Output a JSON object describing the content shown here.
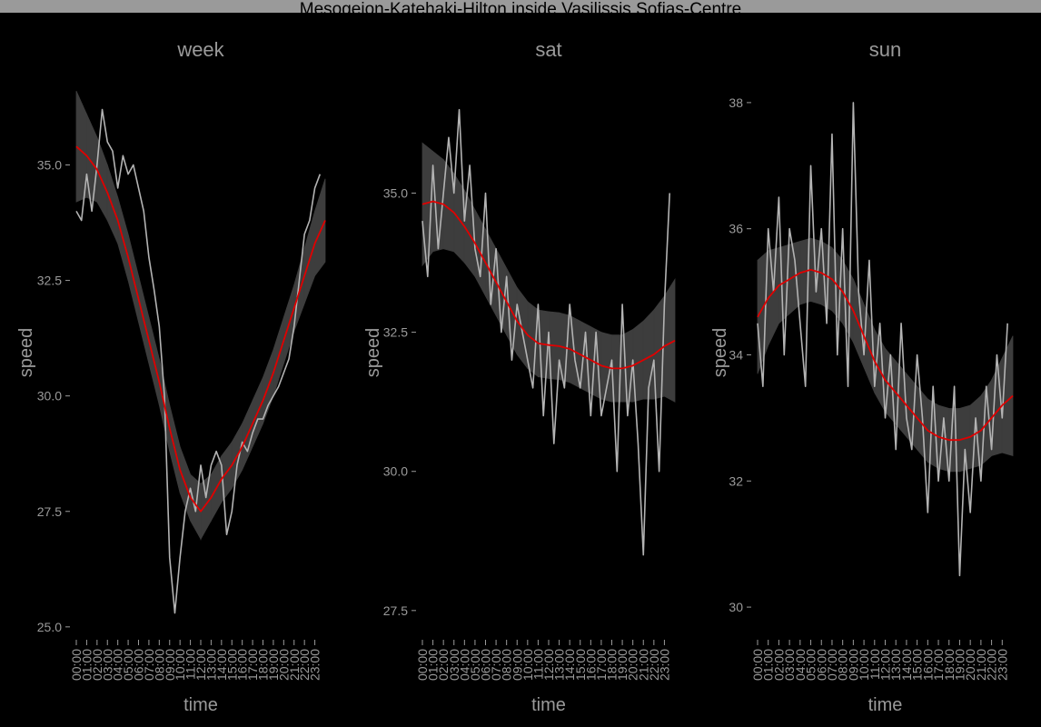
{
  "title": "Mesogeion-Katehaki-Hilton inside Vasilissis Sofias-Centre",
  "chart_data": [
    {
      "type": "line",
      "title": "week",
      "xlabel": "time",
      "ylabel": "speed",
      "xlim": [
        0,
        24
      ],
      "ylim": [
        24.8,
        36.8
      ],
      "yticks": [
        {
          "value": 25,
          "label": "25.0"
        },
        27.5,
        {
          "value": 30,
          "label": "30.0"
        },
        32.5,
        {
          "value": 35,
          "label": "35.0"
        }
      ],
      "xticks": [
        {
          "value": 0,
          "label": "00:00"
        },
        {
          "value": 1,
          "label": "01:00"
        },
        {
          "value": 2,
          "label": "02:00"
        },
        {
          "value": 3,
          "label": "03:00"
        },
        {
          "value": 4,
          "label": "04:00"
        },
        {
          "value": 5,
          "label": "05:00"
        },
        {
          "value": 6,
          "label": "06:00"
        },
        {
          "value": 7,
          "label": "07:00"
        },
        {
          "value": 8,
          "label": "08:00"
        },
        {
          "value": 9,
          "label": "09:00"
        },
        {
          "value": 10,
          "label": "10:00"
        },
        {
          "value": 11,
          "label": "11:00"
        },
        {
          "value": 12,
          "label": "12:00"
        },
        {
          "value": 13,
          "label": "13:00"
        },
        {
          "value": 14,
          "label": "14:00"
        },
        {
          "value": 15,
          "label": "15:00"
        },
        {
          "value": 16,
          "label": "16:00"
        },
        {
          "value": 17,
          "label": "17:00"
        },
        {
          "value": 18,
          "label": "18:00"
        },
        {
          "value": 19,
          "label": "19:00"
        },
        {
          "value": 20,
          "label": "20:00"
        },
        {
          "value": 21,
          "label": "21:00"
        },
        {
          "value": 22,
          "label": "22:00"
        },
        {
          "value": 23,
          "label": "23:00"
        }
      ],
      "x": [
        0,
        0.5,
        1,
        1.5,
        2,
        2.5,
        3,
        3.5,
        4,
        4.5,
        5,
        5.5,
        6,
        6.5,
        7,
        7.5,
        8,
        8.5,
        9,
        9.5,
        10,
        10.5,
        11,
        11.5,
        12,
        12.5,
        13,
        13.5,
        14,
        14.5,
        15,
        15.5,
        16,
        16.5,
        17,
        17.5,
        18,
        18.5,
        19,
        19.5,
        20,
        20.5,
        21,
        21.5,
        22,
        22.5,
        23,
        23.5
      ],
      "values": [
        34,
        33.8,
        34.8,
        34,
        35,
        36.2,
        35.5,
        35.3,
        34.5,
        35.2,
        34.8,
        35,
        34.5,
        34,
        33,
        32.3,
        31.5,
        30,
        26.5,
        25.3,
        26.5,
        27.5,
        28,
        27.5,
        28.5,
        27.8,
        28.5,
        28.8,
        28.5,
        27,
        27.5,
        28.5,
        29,
        28.8,
        29.2,
        29.5,
        29.5,
        29.8,
        30,
        30.2,
        30.5,
        30.8,
        31.5,
        32.5,
        33.5,
        33.8,
        34.5,
        34.8
      ],
      "color": "#b3b3b3",
      "smooth_x": [
        0,
        1,
        2,
        3,
        4,
        5,
        6,
        7,
        8,
        9,
        10,
        11,
        12,
        13,
        14,
        15,
        16,
        17,
        18,
        19,
        20,
        21,
        22,
        23,
        24
      ],
      "smooth": [
        35.4,
        35.2,
        34.9,
        34.4,
        33.8,
        33.0,
        32.1,
        31.2,
        30.3,
        29.3,
        28.4,
        27.8,
        27.5,
        27.8,
        28.2,
        28.5,
        28.9,
        29.4,
        29.9,
        30.5,
        31.2,
        31.9,
        32.6,
        33.3,
        33.8
      ],
      "smooth_color": "#e00000",
      "band": {
        "color": "#3d3d3d",
        "lower": [
          34.2,
          34.3,
          34.2,
          33.8,
          33.3,
          32.5,
          31.6,
          30.7,
          29.8,
          28.8,
          27.9,
          27.3,
          26.9,
          27.3,
          27.7,
          28.0,
          28.4,
          28.9,
          29.4,
          30.0,
          30.7,
          31.4,
          32.0,
          32.6,
          32.9
        ],
        "upper": [
          36.6,
          36.1,
          35.6,
          35.0,
          34.3,
          33.5,
          32.6,
          31.7,
          30.8,
          29.8,
          28.9,
          28.3,
          28.1,
          28.3,
          28.7,
          29.0,
          29.4,
          29.9,
          30.4,
          31.0,
          31.7,
          32.4,
          33.2,
          34.0,
          34.7
        ]
      }
    },
    {
      "type": "line",
      "title": "sat",
      "xlabel": "time",
      "ylabel": "speed",
      "xlim": [
        0,
        24
      ],
      "ylim": [
        27.04,
        37.0
      ],
      "yticks": [
        27.5,
        {
          "value": 30,
          "label": "30.0"
        },
        32.5,
        {
          "value": 35,
          "label": "35.0"
        }
      ],
      "xticks": [
        {
          "value": 0,
          "label": "00:00"
        },
        {
          "value": 1,
          "label": "01:00"
        },
        {
          "value": 2,
          "label": "02:00"
        },
        {
          "value": 3,
          "label": "03:00"
        },
        {
          "value": 4,
          "label": "04:00"
        },
        {
          "value": 5,
          "label": "05:00"
        },
        {
          "value": 6,
          "label": "06:00"
        },
        {
          "value": 7,
          "label": "07:00"
        },
        {
          "value": 8,
          "label": "08:00"
        },
        {
          "value": 9,
          "label": "09:00"
        },
        {
          "value": 10,
          "label": "10:00"
        },
        {
          "value": 11,
          "label": "11:00"
        },
        {
          "value": 12,
          "label": "12:00"
        },
        {
          "value": 13,
          "label": "13:00"
        },
        {
          "value": 14,
          "label": "14:00"
        },
        {
          "value": 15,
          "label": "15:00"
        },
        {
          "value": 16,
          "label": "16:00"
        },
        {
          "value": 17,
          "label": "17:00"
        },
        {
          "value": 18,
          "label": "18:00"
        },
        {
          "value": 19,
          "label": "19:00"
        },
        {
          "value": 20,
          "label": "20:00"
        },
        {
          "value": 21,
          "label": "21:00"
        },
        {
          "value": 22,
          "label": "22:00"
        },
        {
          "value": 23,
          "label": "23:00"
        }
      ],
      "x": [
        0,
        0.5,
        1,
        1.5,
        2,
        2.5,
        3,
        3.5,
        4,
        4.5,
        5,
        5.5,
        6,
        6.5,
        7,
        7.5,
        8,
        8.5,
        9,
        9.5,
        10,
        10.5,
        11,
        11.5,
        12,
        12.5,
        13,
        13.5,
        14,
        14.5,
        15,
        15.5,
        16,
        16.5,
        17,
        17.5,
        18,
        18.5,
        19,
        19.5,
        20,
        20.5,
        21,
        21.5,
        22,
        22.5,
        23,
        23.5
      ],
      "values": [
        34.5,
        33.5,
        35.5,
        34,
        35,
        36,
        35,
        36.5,
        34.5,
        35.5,
        34,
        33.5,
        35,
        33,
        34,
        32.5,
        33.5,
        32,
        33,
        32.5,
        32,
        31.5,
        33,
        31,
        32.5,
        30.5,
        32,
        31.5,
        33,
        32,
        31.5,
        32.5,
        31,
        32.5,
        31,
        31.5,
        32,
        30,
        33,
        31,
        32,
        30.5,
        28.5,
        31.5,
        32,
        30,
        33,
        35
      ],
      "color": "#b3b3b3",
      "smooth_x": [
        0,
        1,
        2,
        3,
        4,
        5,
        6,
        7,
        8,
        9,
        10,
        11,
        12,
        13,
        14,
        15,
        16,
        17,
        18,
        19,
        20,
        21,
        22,
        23,
        24
      ],
      "smooth": [
        34.8,
        34.85,
        34.8,
        34.65,
        34.4,
        34.1,
        33.75,
        33.4,
        33.05,
        32.7,
        32.45,
        32.3,
        32.27,
        32.25,
        32.2,
        32.1,
        32.0,
        31.9,
        31.85,
        31.85,
        31.9,
        32.0,
        32.1,
        32.25,
        32.35
      ],
      "smooth_color": "#e00000",
      "band": {
        "color": "#3d3d3d",
        "lower": [
          33.7,
          33.95,
          34.0,
          33.95,
          33.75,
          33.5,
          33.15,
          32.8,
          32.45,
          32.1,
          31.85,
          31.7,
          31.67,
          31.65,
          31.6,
          31.5,
          31.4,
          31.3,
          31.25,
          31.25,
          31.25,
          31.3,
          31.3,
          31.35,
          31.25
        ],
        "upper": [
          35.9,
          35.75,
          35.6,
          35.35,
          35.05,
          34.7,
          34.35,
          34.0,
          33.65,
          33.3,
          33.05,
          32.9,
          32.87,
          32.85,
          32.8,
          32.7,
          32.6,
          32.5,
          32.45,
          32.45,
          32.55,
          32.7,
          32.9,
          33.15,
          33.45
        ]
      }
    },
    {
      "type": "line",
      "title": "sun",
      "xlabel": "time",
      "ylabel": "speed",
      "xlim": [
        0,
        24
      ],
      "ylim": [
        29.54,
        38.33
      ],
      "yticks": [
        30,
        32,
        34,
        36,
        38
      ],
      "xticks": [
        {
          "value": 0,
          "label": "00:00"
        },
        {
          "value": 1,
          "label": "01:00"
        },
        {
          "value": 2,
          "label": "02:00"
        },
        {
          "value": 3,
          "label": "03:00"
        },
        {
          "value": 4,
          "label": "04:00"
        },
        {
          "value": 5,
          "label": "05:00"
        },
        {
          "value": 6,
          "label": "06:00"
        },
        {
          "value": 7,
          "label": "07:00"
        },
        {
          "value": 8,
          "label": "08:00"
        },
        {
          "value": 9,
          "label": "09:00"
        },
        {
          "value": 10,
          "label": "10:00"
        },
        {
          "value": 11,
          "label": "11:00"
        },
        {
          "value": 12,
          "label": "12:00"
        },
        {
          "value": 13,
          "label": "13:00"
        },
        {
          "value": 14,
          "label": "14:00"
        },
        {
          "value": 15,
          "label": "15:00"
        },
        {
          "value": 16,
          "label": "16:00"
        },
        {
          "value": 17,
          "label": "17:00"
        },
        {
          "value": 18,
          "label": "18:00"
        },
        {
          "value": 19,
          "label": "19:00"
        },
        {
          "value": 20,
          "label": "20:00"
        },
        {
          "value": 21,
          "label": "21:00"
        },
        {
          "value": 22,
          "label": "22:00"
        },
        {
          "value": 23,
          "label": "23:00"
        }
      ],
      "x": [
        0,
        0.5,
        1,
        1.5,
        2,
        2.5,
        3,
        3.5,
        4,
        4.5,
        5,
        5.5,
        6,
        6.5,
        7,
        7.5,
        8,
        8.5,
        9,
        9.5,
        10,
        10.5,
        11,
        11.5,
        12,
        12.5,
        13,
        13.5,
        14,
        14.5,
        15,
        15.5,
        16,
        16.5,
        17,
        17.5,
        18,
        18.5,
        19,
        19.5,
        20,
        20.5,
        21,
        21.5,
        22,
        22.5,
        23,
        23.5
      ],
      "values": [
        34.5,
        33.5,
        36,
        35,
        36.5,
        34,
        36,
        35.5,
        34.5,
        33.5,
        37,
        35,
        36,
        34.5,
        37.5,
        34,
        36,
        33.5,
        38,
        35,
        34,
        35.5,
        33.5,
        34.5,
        33,
        34,
        32.5,
        34.5,
        33,
        32.5,
        34,
        33,
        31.5,
        33.5,
        32,
        33,
        32,
        33.5,
        30.5,
        32.5,
        31.5,
        33,
        32,
        33.5,
        32.5,
        34,
        33,
        34.5
      ],
      "color": "#b3b3b3",
      "smooth_x": [
        0,
        1,
        2,
        3,
        4,
        5,
        6,
        7,
        8,
        9,
        10,
        11,
        12,
        13,
        14,
        15,
        16,
        17,
        18,
        19,
        20,
        21,
        22,
        23,
        24
      ],
      "smooth": [
        34.6,
        34.9,
        35.1,
        35.2,
        35.3,
        35.35,
        35.3,
        35.2,
        35.0,
        34.7,
        34.3,
        33.9,
        33.6,
        33.4,
        33.2,
        33.0,
        32.8,
        32.7,
        32.65,
        32.65,
        32.7,
        32.8,
        33.0,
        33.2,
        33.35
      ],
      "smooth_color": "#e00000",
      "band": {
        "color": "#3d3d3d",
        "lower": [
          33.7,
          34.15,
          34.5,
          34.65,
          34.8,
          34.85,
          34.8,
          34.7,
          34.5,
          34.2,
          33.8,
          33.4,
          33.1,
          32.9,
          32.7,
          32.5,
          32.3,
          32.2,
          32.15,
          32.15,
          32.2,
          32.25,
          32.4,
          32.45,
          32.4
        ],
        "upper": [
          35.5,
          35.65,
          35.7,
          35.75,
          35.8,
          35.85,
          35.8,
          35.7,
          35.5,
          35.2,
          34.8,
          34.4,
          34.1,
          33.9,
          33.7,
          33.5,
          33.3,
          33.2,
          33.15,
          33.15,
          33.2,
          33.35,
          33.6,
          33.95,
          34.3
        ]
      }
    }
  ]
}
